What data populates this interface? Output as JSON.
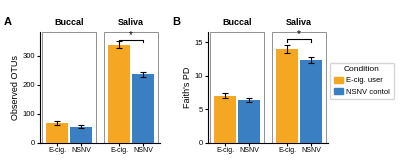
{
  "chart_data": [
    {
      "type": "bar",
      "title": "A",
      "ylabel": "Observed OTUs",
      "categories": [
        "Buccal",
        "Saliva"
      ],
      "series": [
        {
          "name": "E-cig. user",
          "label": "E-cig.",
          "color": "#F5A623",
          "values": [
            67,
            338
          ],
          "errors": [
            7,
            12
          ]
        },
        {
          "name": "NSNV contol",
          "label": "NSNV",
          "color": "#3A7FC1",
          "values": [
            55,
            235
          ],
          "errors": [
            5,
            10
          ]
        }
      ],
      "ylim": [
        0,
        380
      ],
      "yticks": [
        0,
        100,
        200,
        300
      ],
      "annotations": [
        {
          "text": "*",
          "category": "Saliva",
          "y": 355
        }
      ],
      "legend": "center right",
      "legend_title": "Condition"
    },
    {
      "type": "bar",
      "title": "B",
      "ylabel": "Faith's PD",
      "categories": [
        "Buccal",
        "Saliva"
      ],
      "series": [
        {
          "name": "E-cig. user",
          "label": "E-cig.",
          "color": "#F5A623",
          "values": [
            7.0,
            14.0
          ],
          "errors": [
            0.35,
            0.55
          ]
        },
        {
          "name": "NSNV contol",
          "label": "NSNV",
          "color": "#3A7FC1",
          "values": [
            6.4,
            12.3
          ],
          "errors": [
            0.3,
            0.45
          ]
        }
      ],
      "ylim": [
        0,
        16.5
      ],
      "yticks": [
        0,
        5,
        10,
        15
      ],
      "annotations": [
        {
          "text": "*",
          "category": "Saliva",
          "y": 15.5
        }
      ]
    }
  ]
}
